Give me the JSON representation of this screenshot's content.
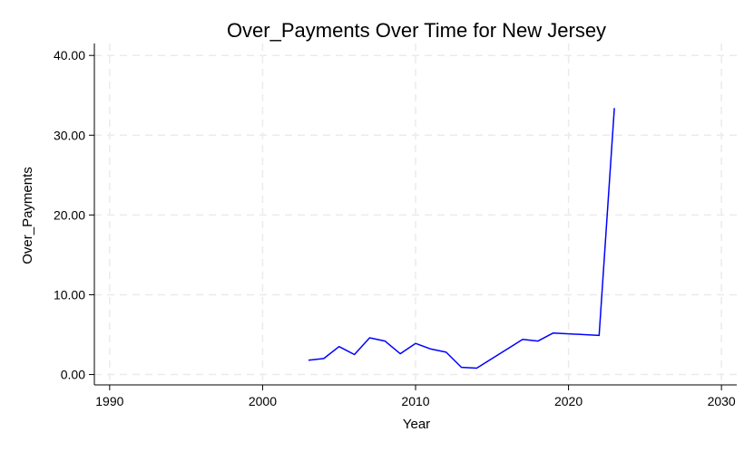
{
  "chart_data": {
    "type": "line",
    "title": "Over_Payments Over Time for New Jersey",
    "xlabel": "Year",
    "ylabel": "Over_Payments",
    "xlim": [
      1989,
      2031
    ],
    "ylim": [
      -1.3,
      41.5
    ],
    "xticks": [
      1990,
      2000,
      2010,
      2020,
      2030
    ],
    "xtick_labels": [
      "1990",
      "2000",
      "2010",
      "2020",
      "2030"
    ],
    "yticks": [
      0,
      10,
      20,
      30,
      40
    ],
    "ytick_labels": [
      "0.00",
      "10.00",
      "20.00",
      "30.00",
      "40.00"
    ],
    "grid": true,
    "legend": "none",
    "series": [
      {
        "color": "#0000ff",
        "x": [
          2003,
          2004,
          2005,
          2006,
          2007,
          2008,
          2009,
          2010,
          2011,
          2012,
          2013,
          2014,
          2017,
          2018,
          2019,
          2022,
          2023
        ],
        "y": [
          1.8,
          2.0,
          3.5,
          2.5,
          4.6,
          4.2,
          2.6,
          3.9,
          3.2,
          2.8,
          0.9,
          0.8,
          4.4,
          4.2,
          5.2,
          4.9,
          33.4
        ]
      }
    ]
  }
}
